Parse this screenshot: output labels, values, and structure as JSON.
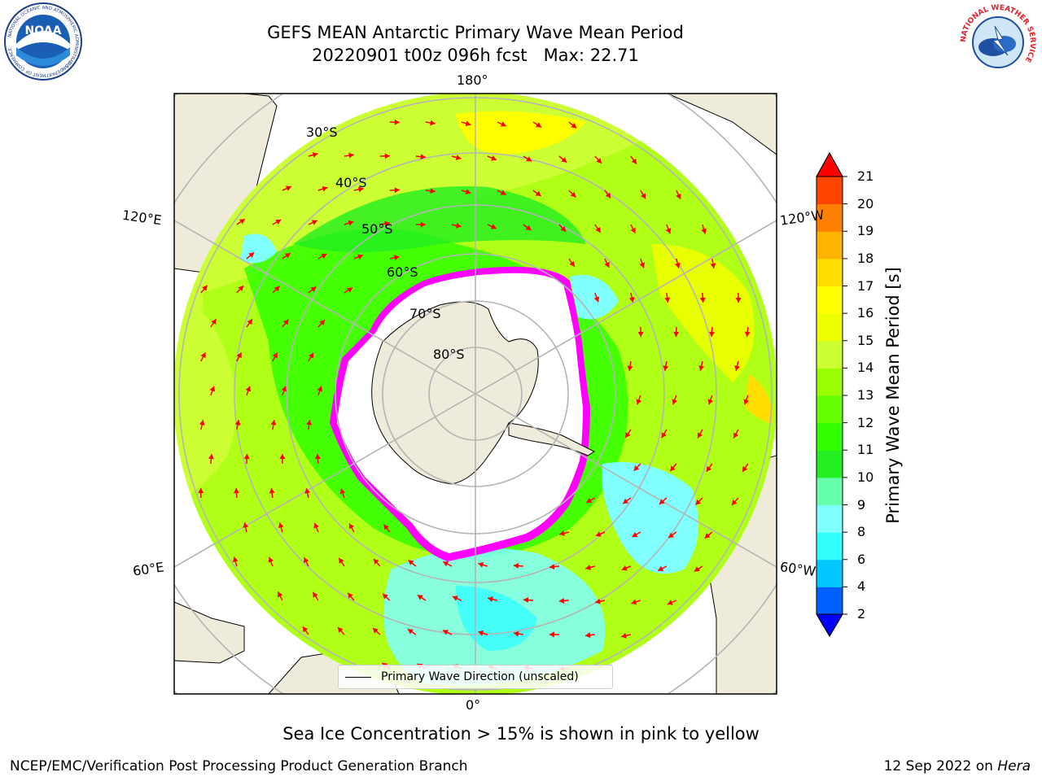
{
  "header": {
    "title_line1": "GEFS MEAN Antarctic Primary Wave Mean Period",
    "title_line2": "20220901 t00z 096h fcst   Max: 22.71"
  },
  "logos": {
    "noaa_text": "NOAA",
    "noaa_ring_text": "NATIONAL OCEANIC AND ATMOSPHERIC ADMINISTRATION",
    "noaa_bottom_text": "U.S. DEPARTMENT OF COMMERCE",
    "nws_ring_text": "NATIONAL WEATHER SERVICE"
  },
  "map": {
    "projection": "south-polar-stereographic",
    "longitude_labels": {
      "top": "180°",
      "bottom": "0°",
      "left_upper": "120°E",
      "left_lower": "60°E",
      "right_upper": "120°W",
      "right_lower": "60°W"
    },
    "latitude_labels": [
      "30°S",
      "40°S",
      "50°S",
      "60°S",
      "70°S",
      "80°S"
    ],
    "legend_label": "Primary Wave Direction (unscaled)",
    "arrow_color": "#ff0000",
    "land_color": "#efebdb",
    "ice_colors": [
      "#ff00ff",
      "#ffa500",
      "#ffff00"
    ]
  },
  "colorbar": {
    "label": "Primary Wave Mean Period [s]",
    "ticks": [
      "2",
      "4",
      "6",
      "8",
      "9",
      "10",
      "11",
      "12",
      "13",
      "14",
      "15",
      "16",
      "17",
      "18",
      "19",
      "20",
      "21"
    ],
    "colors": [
      "#0060ff",
      "#00c8ff",
      "#33ffff",
      "#80ffff",
      "#66ffaa",
      "#22ee22",
      "#33ff00",
      "#66ff00",
      "#99ff00",
      "#ccff33",
      "#eeff00",
      "#ffff00",
      "#ffdd00",
      "#ffb300",
      "#ff8000",
      "#ff4400"
    ],
    "under_color": "#0000ff",
    "over_color": "#ff0000"
  },
  "caption": "Sea Ice Concentration > 15% is shown in pink to yellow",
  "footer": {
    "left": "NCEP/EMC/Verification Post Processing Product Generation Branch",
    "right_date": "12 Sep 2022 on",
    "right_host": "Hera"
  }
}
